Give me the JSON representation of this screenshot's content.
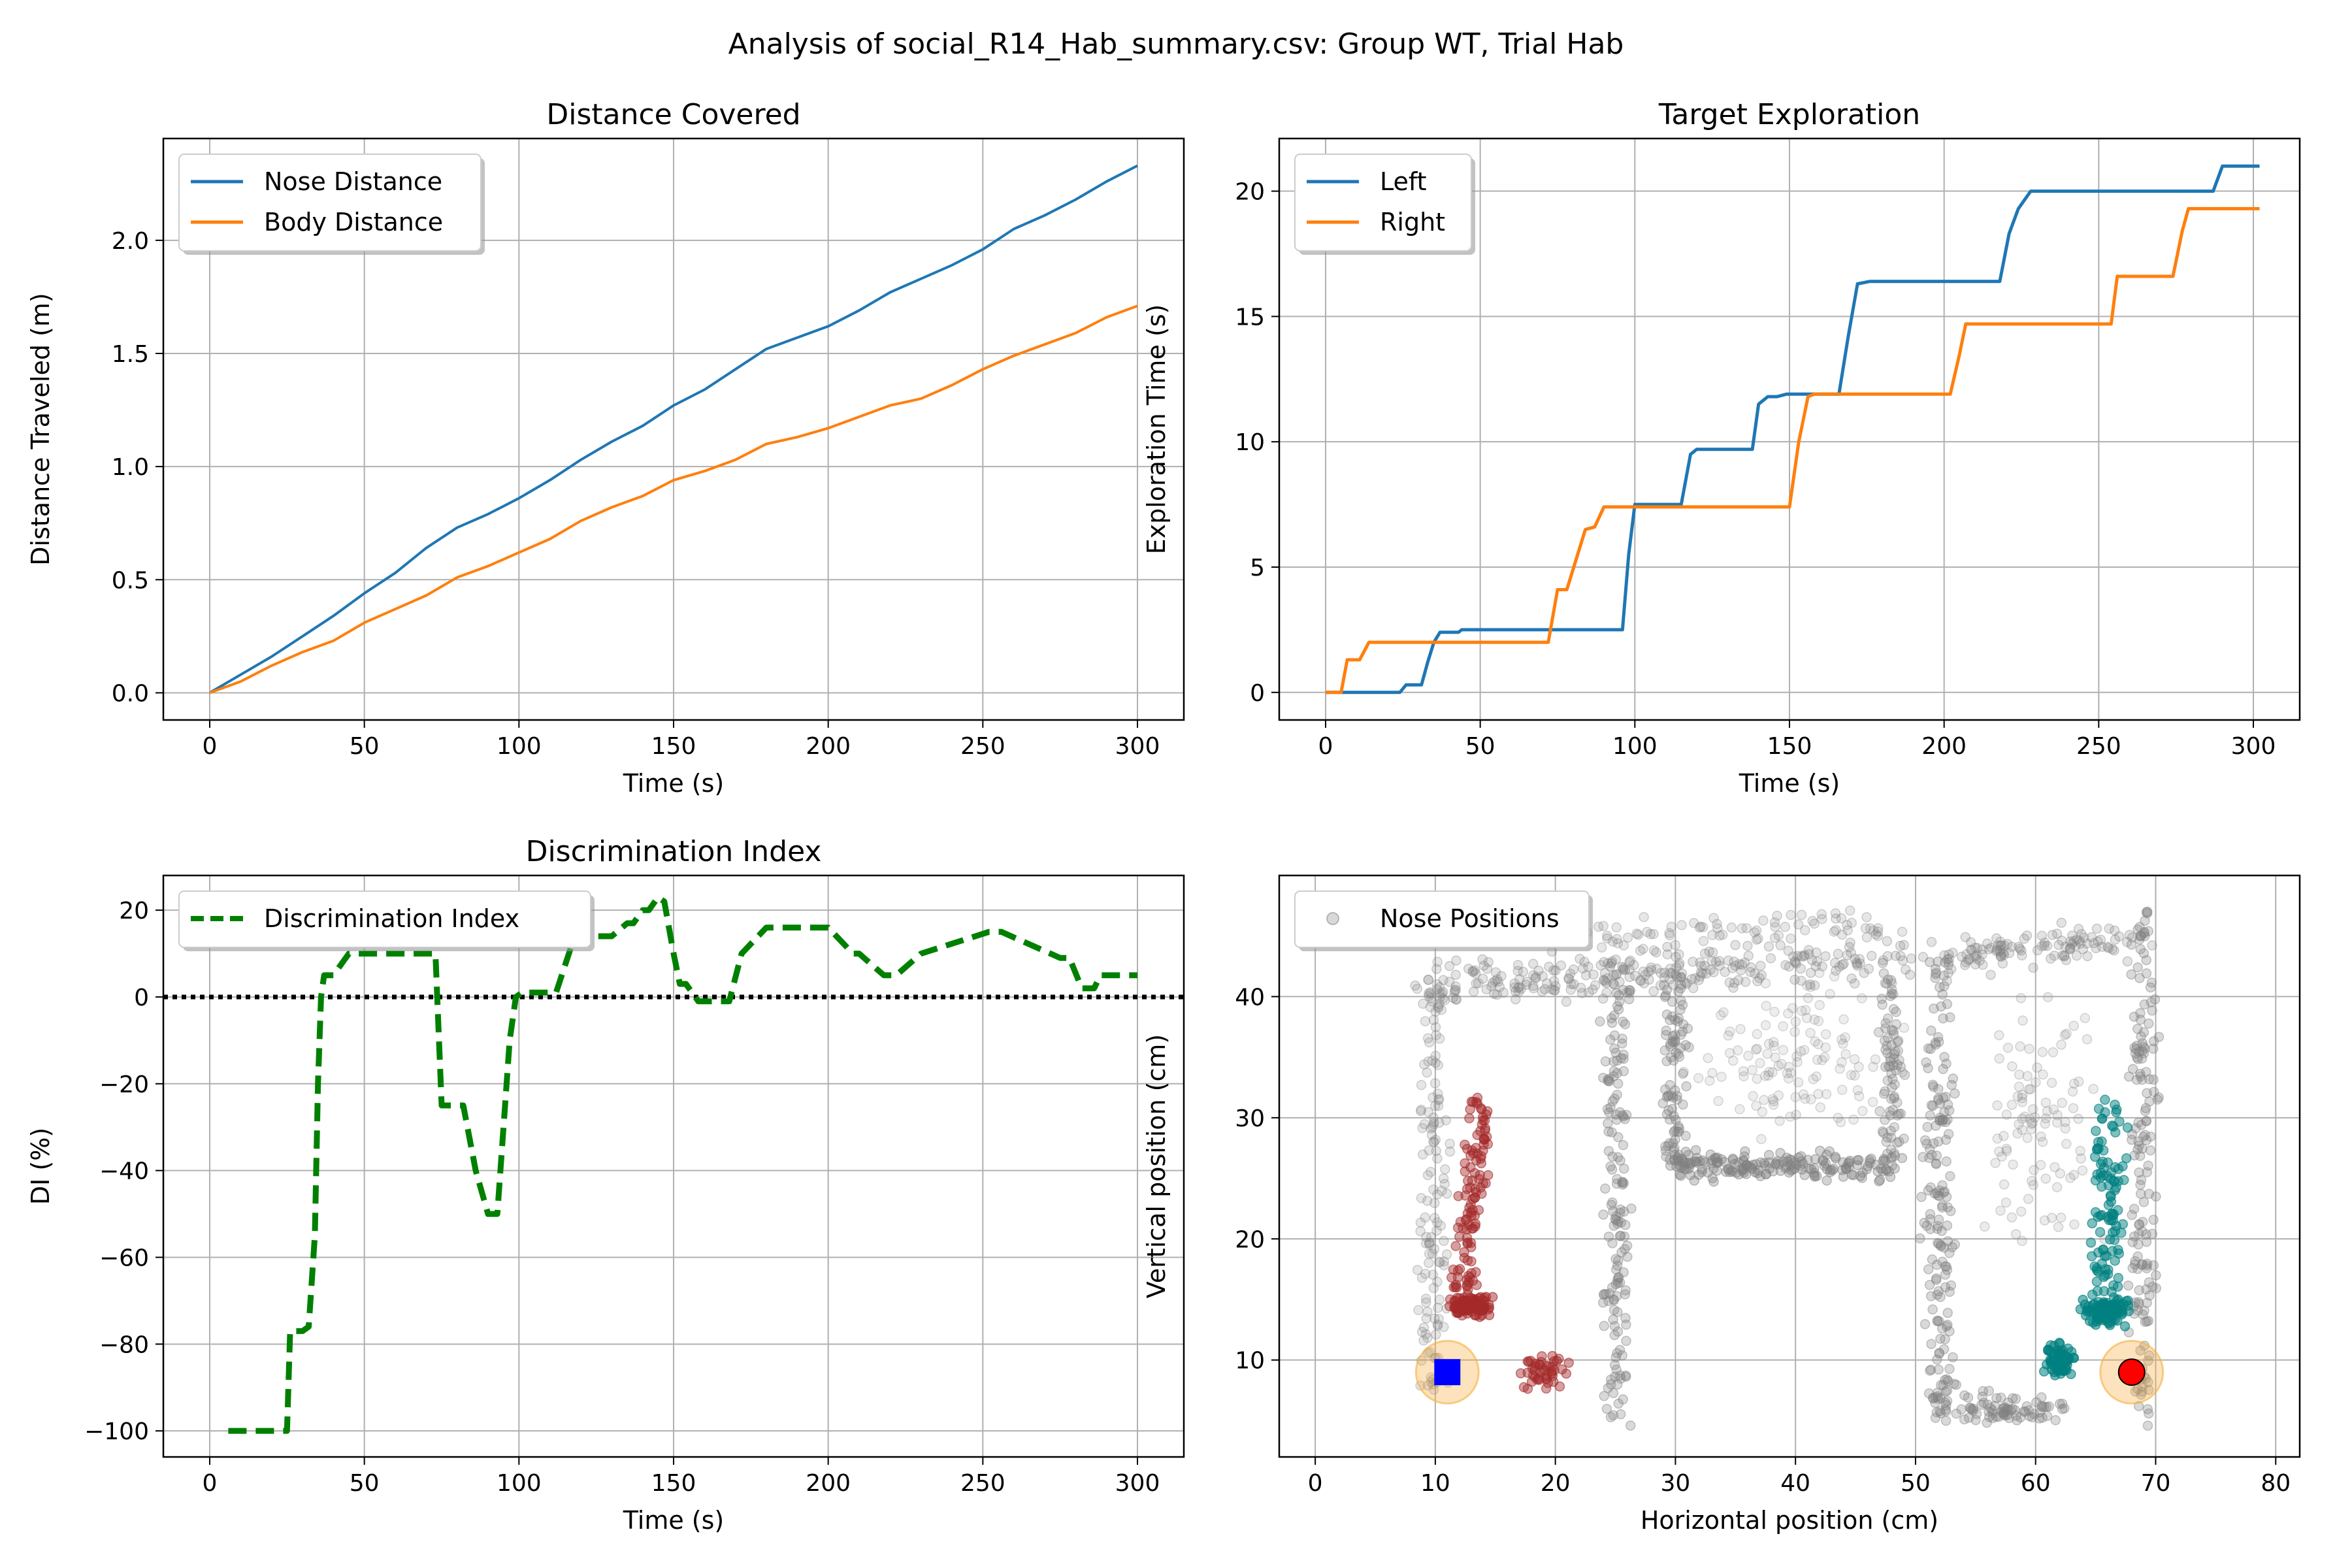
{
  "suptitle": "Analysis of social_R14_Hab_summary.csv: Group WT, Trial Hab",
  "chart_data": [
    {
      "id": "distance",
      "type": "line",
      "title": "Distance Covered",
      "xlabel": "Time (s)",
      "ylabel": "Distance Traveled (m)",
      "xlim": [
        -15,
        315
      ],
      "ylim": [
        -0.12,
        2.45
      ],
      "xticks": [
        0,
        50,
        100,
        150,
        200,
        250,
        300
      ],
      "yticks": [
        0.0,
        0.5,
        1.0,
        1.5,
        2.0
      ],
      "ytick_format": "1",
      "grid": true,
      "legend_position": "top-left",
      "series": [
        {
          "name": "Nose Distance",
          "color": "#1f77b4",
          "x": [
            0,
            10,
            20,
            30,
            40,
            50,
            60,
            70,
            80,
            90,
            100,
            110,
            120,
            130,
            140,
            150,
            160,
            170,
            180,
            190,
            200,
            210,
            220,
            230,
            240,
            250,
            260,
            270,
            280,
            290,
            300
          ],
          "y": [
            0.0,
            0.08,
            0.16,
            0.25,
            0.34,
            0.44,
            0.53,
            0.64,
            0.73,
            0.79,
            0.86,
            0.94,
            1.03,
            1.11,
            1.18,
            1.27,
            1.34,
            1.43,
            1.52,
            1.57,
            1.62,
            1.69,
            1.77,
            1.83,
            1.89,
            1.96,
            2.05,
            2.11,
            2.18,
            2.26,
            2.33
          ]
        },
        {
          "name": "Body Distance",
          "color": "#ff7f0e",
          "x": [
            0,
            10,
            20,
            30,
            40,
            50,
            60,
            70,
            80,
            90,
            100,
            110,
            120,
            130,
            140,
            150,
            160,
            170,
            180,
            190,
            200,
            210,
            220,
            230,
            240,
            250,
            260,
            270,
            280,
            290,
            300
          ],
          "y": [
            0.0,
            0.05,
            0.12,
            0.18,
            0.23,
            0.31,
            0.37,
            0.43,
            0.51,
            0.56,
            0.62,
            0.68,
            0.76,
            0.82,
            0.87,
            0.94,
            0.98,
            1.03,
            1.1,
            1.13,
            1.17,
            1.22,
            1.27,
            1.3,
            1.36,
            1.43,
            1.49,
            1.54,
            1.59,
            1.66,
            1.71
          ]
        }
      ]
    },
    {
      "id": "exploration",
      "type": "line",
      "title": "Target Exploration",
      "xlabel": "Time (s)",
      "ylabel": "Exploration Time (s)",
      "xlim": [
        -15,
        315
      ],
      "ylim": [
        -1.1,
        22.1
      ],
      "xticks": [
        0,
        50,
        100,
        150,
        200,
        250,
        300
      ],
      "yticks": [
        0,
        5,
        10,
        15,
        20
      ],
      "ytick_format": "0",
      "grid": true,
      "legend_position": "top-left",
      "series": [
        {
          "name": "Left",
          "color": "#1f77b4",
          "x": [
            0,
            24,
            26,
            31,
            33,
            35,
            37,
            43,
            44,
            96,
            98,
            100,
            102,
            115,
            118,
            120,
            138,
            140,
            143,
            146,
            149,
            166,
            169,
            172,
            176,
            218,
            221,
            224,
            228,
            287,
            290,
            302
          ],
          "y": [
            0,
            0,
            0.3,
            0.3,
            1.2,
            2.0,
            2.4,
            2.4,
            2.5,
            2.5,
            5.5,
            7.5,
            7.5,
            7.5,
            9.5,
            9.7,
            9.7,
            11.5,
            11.8,
            11.8,
            11.9,
            11.9,
            14.2,
            16.3,
            16.4,
            16.4,
            18.3,
            19.3,
            20.0,
            20.0,
            21.0,
            21.0
          ]
        },
        {
          "name": "Right",
          "color": "#ff7f0e",
          "x": [
            0,
            5,
            7,
            11,
            14,
            17,
            72,
            75,
            78,
            84,
            87,
            90,
            93,
            150,
            153,
            156,
            158,
            160,
            202,
            205,
            207,
            254,
            256,
            274,
            277,
            279,
            302
          ],
          "y": [
            0,
            0,
            1.3,
            1.3,
            2.0,
            2.0,
            2.0,
            4.1,
            4.1,
            6.5,
            6.6,
            7.4,
            7.4,
            7.4,
            10.0,
            11.8,
            11.9,
            11.9,
            11.9,
            13.5,
            14.7,
            14.7,
            16.6,
            16.6,
            18.4,
            19.3,
            19.3
          ]
        }
      ]
    },
    {
      "id": "discrimination",
      "type": "line",
      "title": "Discrimination Index",
      "xlabel": "Time (s)",
      "ylabel": "DI (%)",
      "xlim": [
        -15,
        315
      ],
      "ylim": [
        -106,
        28
      ],
      "xticks": [
        0,
        50,
        100,
        150,
        200,
        250,
        300
      ],
      "yticks": [
        -100,
        -80,
        -60,
        -40,
        -20,
        0,
        20
      ],
      "ytick_format": "0",
      "grid": true,
      "legend_position": "top-left",
      "reference_line": {
        "y": 0,
        "style": "dotted",
        "color": "#000000"
      },
      "series": [
        {
          "name": "Discrimination Index",
          "color": "#008000",
          "style": "dashed",
          "x": [
            6,
            25,
            26,
            30,
            32,
            34,
            35,
            36,
            37,
            40,
            43,
            45,
            73,
            75,
            78,
            82,
            86,
            90,
            93,
            95,
            97,
            99,
            101,
            104,
            112,
            118,
            120,
            130,
            135,
            137,
            140,
            142,
            145,
            147,
            150,
            152,
            154,
            158,
            163,
            168,
            172,
            176,
            180,
            200,
            208,
            210,
            218,
            222,
            230,
            252,
            256,
            275,
            278,
            282,
            286,
            288,
            300
          ],
          "y": [
            -100,
            -100,
            -77,
            -77,
            -76,
            -55,
            -20,
            0,
            5,
            5,
            8,
            10,
            10,
            -25,
            -25,
            -25,
            -40,
            -50,
            -50,
            -30,
            -10,
            0,
            1,
            1,
            1,
            14,
            14,
            14,
            17,
            17,
            20,
            20,
            23,
            22,
            10,
            3,
            3,
            -1,
            -1,
            -1,
            10,
            13,
            16,
            16,
            10,
            10,
            5,
            5,
            10,
            15,
            15,
            9,
            9,
            2,
            2,
            5,
            5
          ]
        }
      ]
    },
    {
      "id": "positions",
      "type": "scatter",
      "xlabel": "Horizontal position (cm)",
      "ylabel": "Vertical position (cm)",
      "xlim": [
        -3,
        82
      ],
      "ylim": [
        2,
        50
      ],
      "xticks": [
        0,
        10,
        20,
        30,
        40,
        50,
        60,
        70,
        80
      ],
      "yticks": [
        10,
        20,
        30,
        40
      ],
      "ytick_format": "0",
      "grid": true,
      "legend_position": "top-left",
      "series": [
        {
          "name": "Nose Positions",
          "color": "#808080",
          "role": "all"
        },
        {
          "color": "#a52a2a",
          "role": "left-region"
        },
        {
          "color": "#008080",
          "role": "right-region"
        }
      ],
      "markers": [
        {
          "label_shape": "square",
          "x": 11,
          "y": 9,
          "color": "#0000ff",
          "halo": "#f5b041"
        },
        {
          "label_shape": "circle",
          "x": 68,
          "y": 9,
          "color": "#ff0000",
          "halo": "#f5b041"
        }
      ]
    }
  ]
}
